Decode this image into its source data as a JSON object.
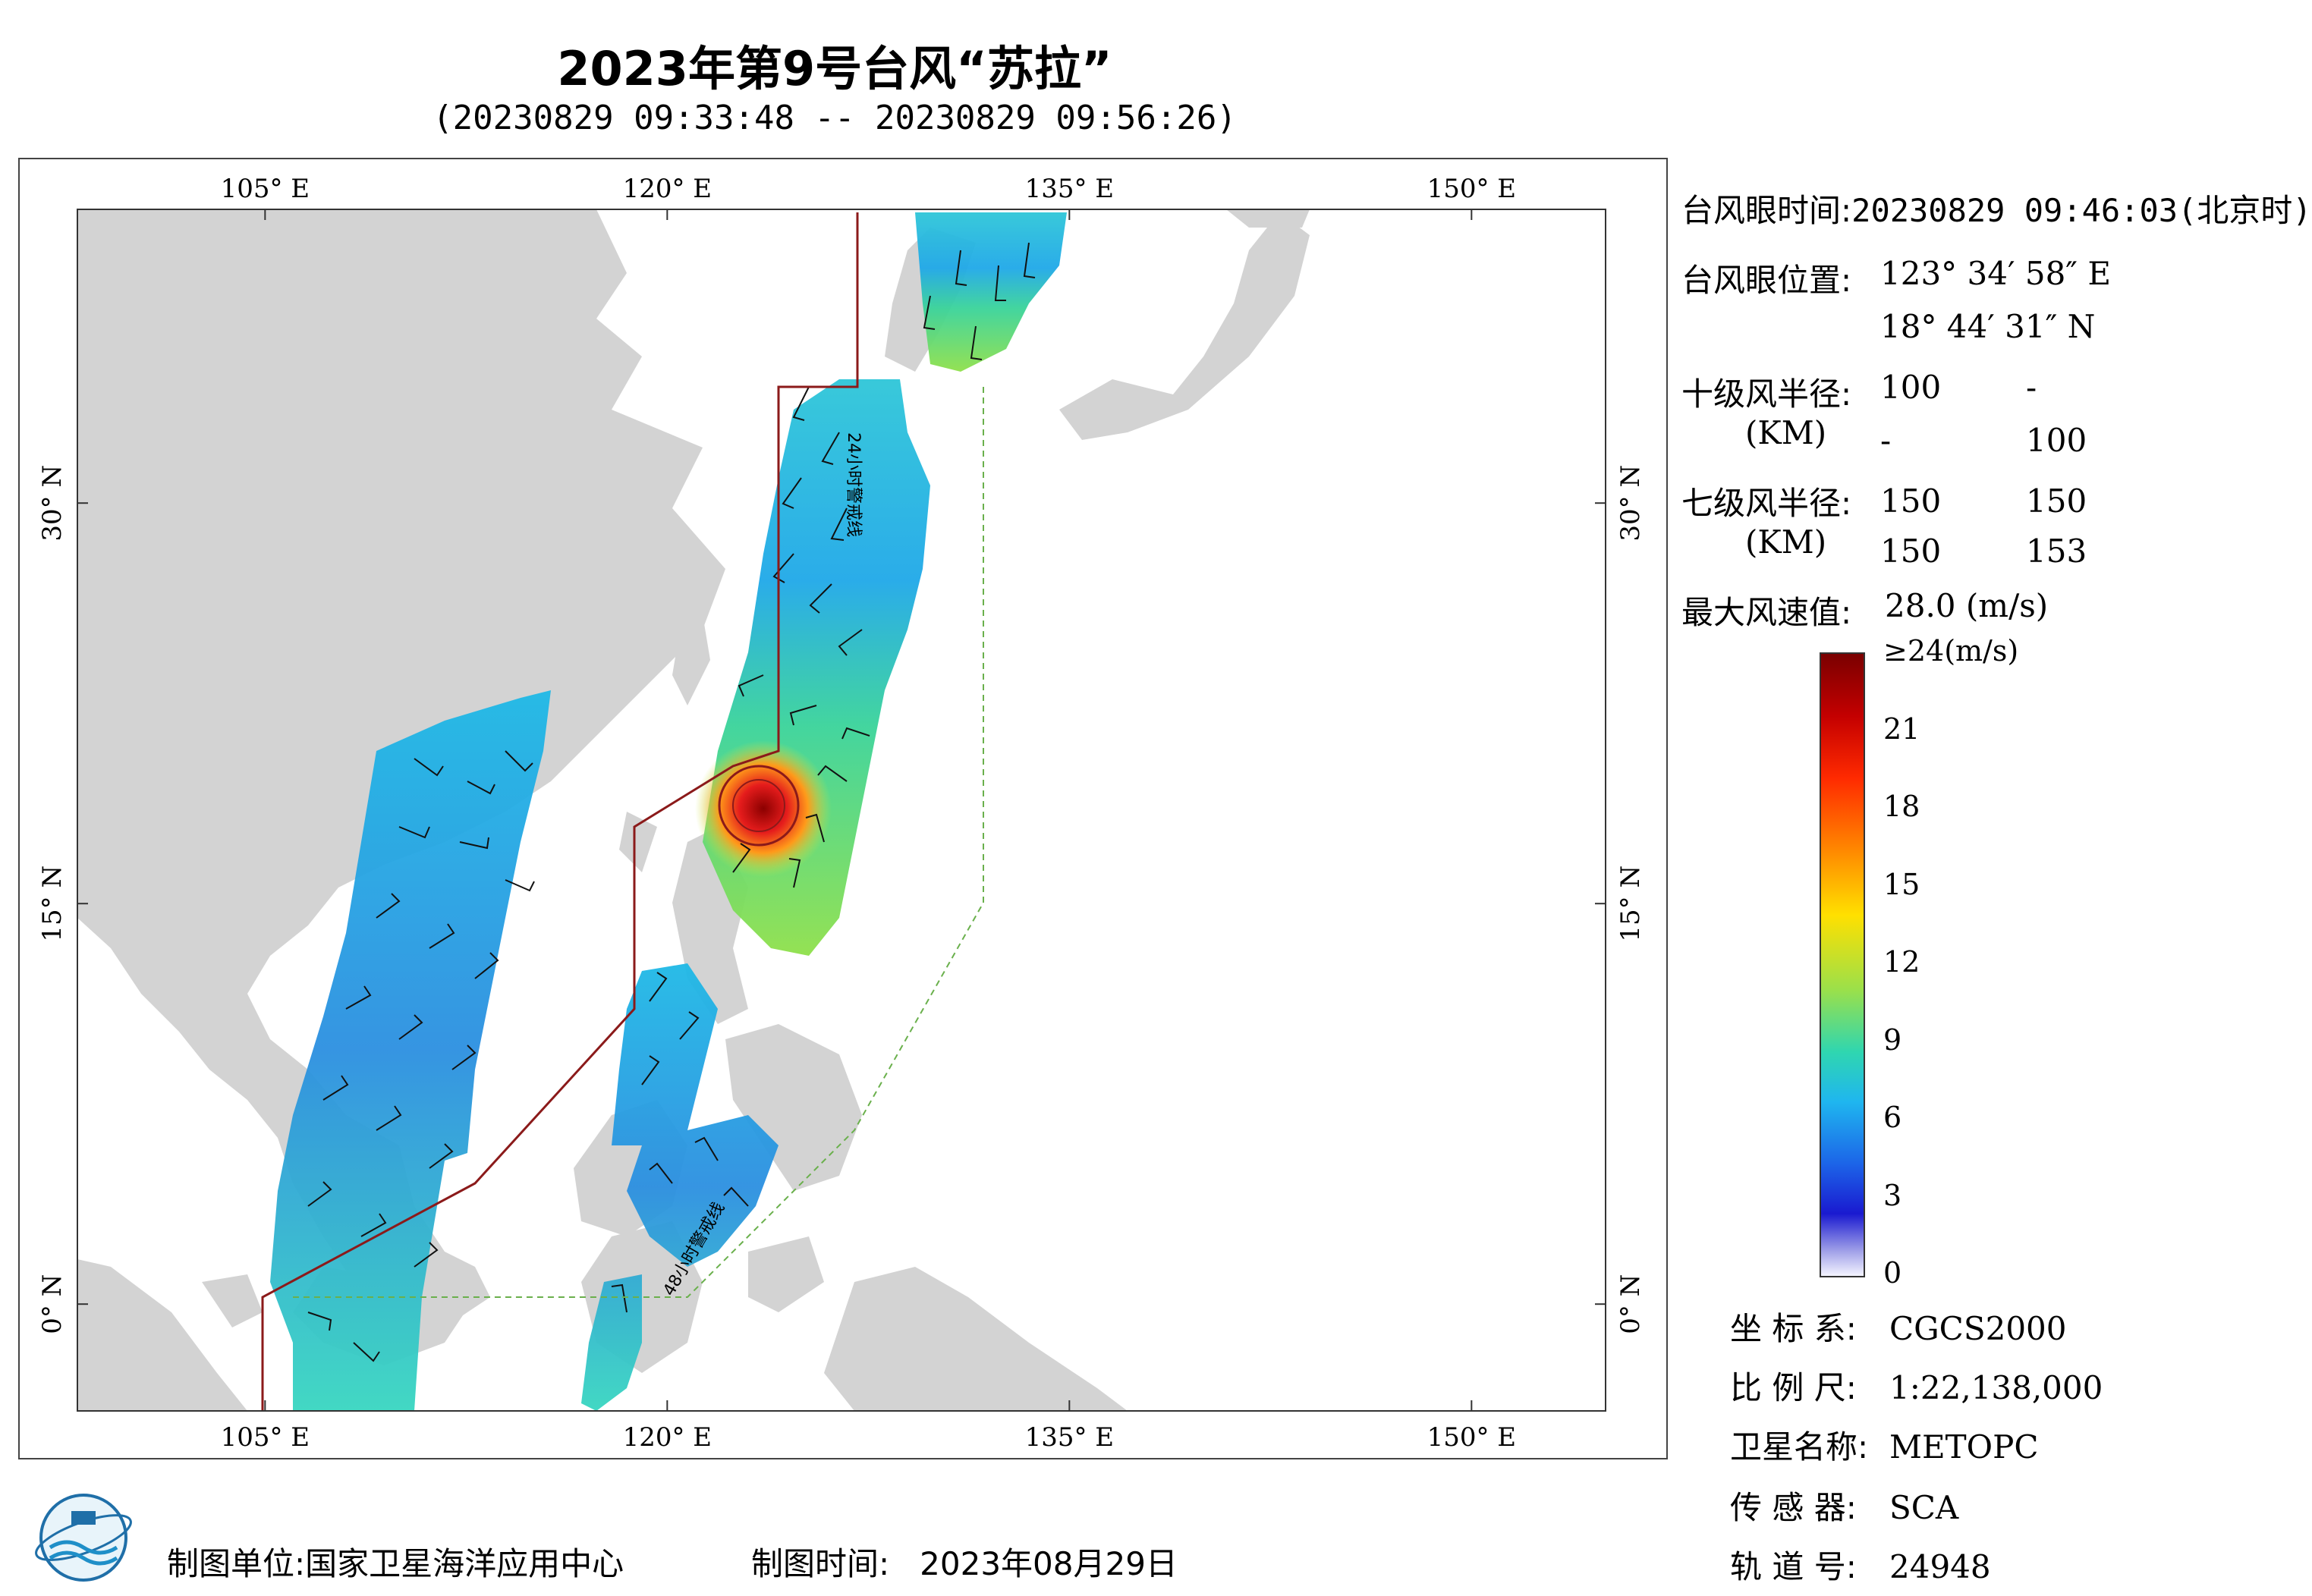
{
  "title": "2023年第9号台风“苏拉”",
  "subtitle": "(20230829 09:33:48 -- 20230829 09:56:26)",
  "map": {
    "lon_labels": [
      "105° E",
      "120° E",
      "135° E",
      "150° E"
    ],
    "lat_labels": [
      "30° N",
      "15° N",
      "0° N"
    ],
    "lon_range": [
      98,
      155
    ],
    "lat_range": [
      -4,
      41
    ],
    "track_labels": [
      "24小时警戒线",
      "48小时警戒线"
    ],
    "land_color": "#d3d3d3",
    "sea_color": "#ffffff",
    "line_24h_color": "#8b1a1a",
    "line_48h_color": "#6ab04c"
  },
  "info": {
    "eye_time_label": "台风眼时间:",
    "eye_time": "20230829 09:46:03(北京时)",
    "eye_pos_label": "台风眼位置:",
    "eye_lon": "123° 34′ 58″ E",
    "eye_lat": "18° 44′ 31″ N",
    "r10_label": "十级风半径:",
    "r10_unit": "(KM)",
    "r10_values": [
      "100",
      "-",
      "-",
      "100"
    ],
    "r7_label": "七级风半径:",
    "r7_unit": "(KM)",
    "r7_values": [
      "150",
      "150",
      "150",
      "153"
    ],
    "max_wind_label": "最大风速值:",
    "max_wind_value": "28.0  (m/s)"
  },
  "colorbar": {
    "labels": [
      "≥24(m/s)",
      "21",
      "18",
      "15",
      "12",
      "9",
      "6",
      "3",
      "0"
    ],
    "max_value": 24,
    "min_value": 0
  },
  "meta": {
    "coord_label": "坐 标 系:",
    "coord_value": "CGCS2000",
    "scale_label": "比 例 尺:",
    "scale_value": "1:22,138,000",
    "satellite_label": "卫星名称:",
    "satellite_value": "METOPC",
    "sensor_label": "传 感 器:",
    "sensor_value": "SCA",
    "orbit_label": "轨 道 号:",
    "orbit_value": "24948"
  },
  "footer": {
    "org_label": "制图单位:",
    "org_value": "国家卫星海洋应用中心",
    "date_label": "制图时间:",
    "date_value": "2023年08月29日"
  },
  "logo_icon": "noc-logo-icon"
}
